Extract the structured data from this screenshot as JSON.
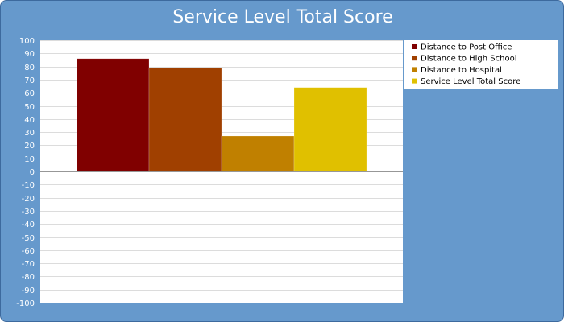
{
  "chart_data": {
    "type": "bar",
    "title": "Service Level Total Score",
    "xlabel": "",
    "ylabel": "",
    "ylim": [
      -100,
      100
    ],
    "ytick_step": 10,
    "grid": true,
    "legend_position": "right",
    "categories": [
      ""
    ],
    "series": [
      {
        "name": "Distance to Post Office",
        "values": [
          86
        ],
        "color": "#800000"
      },
      {
        "name": "Distance to High School",
        "values": [
          79
        ],
        "color": "#a04000"
      },
      {
        "name": "Distance to Hospital",
        "values": [
          27
        ],
        "color": "#c08000"
      },
      {
        "name": "Service Level Total Score",
        "values": [
          64
        ],
        "color": "#e0c000"
      }
    ]
  }
}
